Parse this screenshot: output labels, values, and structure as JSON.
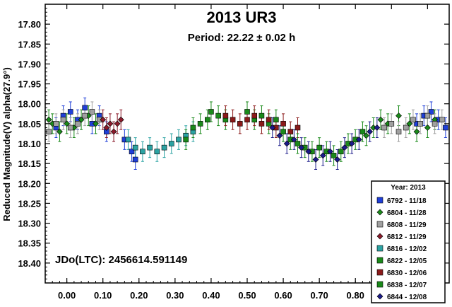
{
  "chart_data": {
    "type": "scatter",
    "title": "2013 UR3",
    "subtitle": "Period: 22.22 ± 0.02 h",
    "xlabel": "",
    "ylabel": "Reduced Magnitude(V) alpha(27.9°)",
    "xlim": [
      -0.06,
      1.06
    ],
    "ylim": [
      18.45,
      17.75
    ],
    "y_inverted": true,
    "x_ticks": [
      "0.00",
      "0.10",
      "0.20",
      "0.30",
      "0.40",
      "0.50",
      "0.60",
      "0.70",
      "0.80",
      "0.90",
      "1.00"
    ],
    "y_ticks": [
      "17.80",
      "17.85",
      "17.90",
      "17.95",
      "18.00",
      "18.05",
      "18.10",
      "18.15",
      "18.20",
      "18.25",
      "18.30",
      "18.35",
      "18.40"
    ],
    "annotation": "JDo(LTC): 2456614.591149",
    "legend": {
      "title": "Year: 2013",
      "placement": "bottom-right"
    },
    "series": [
      {
        "name": "6792 - 11/18",
        "marker": "square",
        "color": "#1f3fd9",
        "points": [
          [
            -0.03,
            18.06
          ],
          [
            -0.01,
            18.03
          ],
          [
            0.01,
            18.02
          ],
          [
            0.03,
            18.04
          ],
          [
            0.05,
            18.01
          ],
          [
            0.07,
            18.05
          ],
          [
            0.09,
            18.03
          ],
          [
            0.11,
            18.07
          ],
          [
            0.16,
            18.09
          ],
          [
            0.18,
            18.12
          ],
          [
            0.19,
            18.14
          ],
          [
            0.97,
            18.05
          ],
          [
            0.99,
            18.03
          ],
          [
            1.01,
            18.02
          ],
          [
            1.03,
            18.04
          ],
          [
            1.05,
            18.06
          ]
        ]
      },
      {
        "name": "6804 - 11/28",
        "marker": "diamond",
        "color": "#1a8a1a",
        "points": [
          [
            -0.05,
            18.04
          ],
          [
            -0.04,
            18.05
          ],
          [
            -0.02,
            18.07
          ],
          [
            0.0,
            18.05
          ],
          [
            0.02,
            18.06
          ],
          [
            0.04,
            18.04
          ],
          [
            0.06,
            18.03
          ],
          [
            0.08,
            18.05
          ],
          [
            0.83,
            18.08
          ],
          [
            0.85,
            18.06
          ],
          [
            0.87,
            18.04
          ],
          [
            0.89,
            18.05
          ],
          [
            0.92,
            18.03
          ],
          [
            0.95,
            18.05
          ],
          [
            0.97,
            18.07
          ],
          [
            1.0,
            18.06
          ],
          [
            1.02,
            18.04
          ]
        ]
      },
      {
        "name": "6808 - 11/29",
        "marker": "square",
        "color": "#a0a0a0",
        "points": [
          [
            -0.05,
            18.07
          ],
          [
            -0.03,
            18.05
          ],
          [
            -0.01,
            18.04
          ],
          [
            0.01,
            18.06
          ],
          [
            0.03,
            18.05
          ],
          [
            0.05,
            18.03
          ],
          [
            0.07,
            18.02
          ],
          [
            0.09,
            18.04
          ],
          [
            0.88,
            18.06
          ],
          [
            0.9,
            18.05
          ],
          [
            0.92,
            18.07
          ],
          [
            0.94,
            18.06
          ],
          [
            0.96,
            18.04
          ],
          [
            0.98,
            18.05
          ],
          [
            1.0,
            18.03
          ],
          [
            1.02,
            18.05
          ],
          [
            1.04,
            18.04
          ]
        ]
      },
      {
        "name": "6812 - 11/29",
        "marker": "diamond",
        "color": "#8b1a2a",
        "points": [
          [
            0.1,
            18.04
          ],
          [
            0.11,
            18.06
          ],
          [
            0.12,
            18.05
          ],
          [
            0.13,
            18.07
          ],
          [
            0.14,
            18.05
          ],
          [
            0.15,
            18.04
          ]
        ]
      },
      {
        "name": "6816 - 12/02",
        "marker": "square",
        "color": "#2ba3a3",
        "points": [
          [
            0.17,
            18.09
          ],
          [
            0.19,
            18.11
          ],
          [
            0.21,
            18.12
          ],
          [
            0.23,
            18.11
          ],
          [
            0.25,
            18.12
          ],
          [
            0.27,
            18.11
          ],
          [
            0.29,
            18.1
          ],
          [
            0.31,
            18.09
          ],
          [
            0.33,
            18.08
          ],
          [
            0.35,
            18.07
          ]
        ]
      },
      {
        "name": "6822 - 12/05",
        "marker": "square",
        "color": "#1a8a1a",
        "points": [
          [
            0.33,
            18.09
          ],
          [
            0.35,
            18.06
          ],
          [
            0.37,
            18.05
          ],
          [
            0.39,
            18.04
          ],
          [
            0.4,
            18.02
          ],
          [
            0.42,
            18.03
          ],
          [
            0.44,
            18.04
          ],
          [
            0.5,
            18.02
          ],
          [
            0.52,
            18.04
          ],
          [
            0.54,
            18.03
          ],
          [
            0.56,
            18.05
          ],
          [
            0.58,
            18.04
          ]
        ]
      },
      {
        "name": "6830 - 12/06",
        "marker": "square",
        "color": "#8b1a1a",
        "points": [
          [
            0.44,
            18.03
          ],
          [
            0.46,
            18.04
          ],
          [
            0.48,
            18.05
          ],
          [
            0.5,
            18.04
          ],
          [
            0.52,
            18.03
          ],
          [
            0.54,
            18.05
          ],
          [
            0.56,
            18.04
          ],
          [
            0.58,
            18.06
          ],
          [
            0.6,
            18.05
          ],
          [
            0.62,
            18.07
          ],
          [
            0.64,
            18.06
          ]
        ]
      },
      {
        "name": "6838 - 12/07",
        "marker": "square",
        "color": "#1a8a1a",
        "points": [
          [
            0.6,
            18.07
          ],
          [
            0.62,
            18.09
          ],
          [
            0.64,
            18.1
          ],
          [
            0.66,
            18.11
          ],
          [
            0.68,
            18.12
          ],
          [
            0.7,
            18.11
          ],
          [
            0.72,
            18.12
          ],
          [
            0.74,
            18.13
          ],
          [
            0.76,
            18.12
          ],
          [
            0.78,
            18.1
          ],
          [
            0.8,
            18.09
          ],
          [
            0.82,
            18.07
          ]
        ]
      },
      {
        "name": "6844 - 12/08",
        "marker": "diamond",
        "color": "#1a1a8a",
        "points": [
          [
            0.57,
            18.06
          ],
          [
            0.59,
            18.08
          ],
          [
            0.61,
            18.1
          ],
          [
            0.63,
            18.09
          ],
          [
            0.65,
            18.11
          ],
          [
            0.67,
            18.12
          ],
          [
            0.69,
            18.14
          ],
          [
            0.71,
            18.13
          ],
          [
            0.73,
            18.12
          ],
          [
            0.75,
            18.14
          ],
          [
            0.77,
            18.11
          ],
          [
            0.79,
            18.1
          ],
          [
            0.81,
            18.09
          ],
          [
            0.84,
            18.07
          ],
          [
            0.86,
            18.06
          ]
        ]
      }
    ]
  }
}
